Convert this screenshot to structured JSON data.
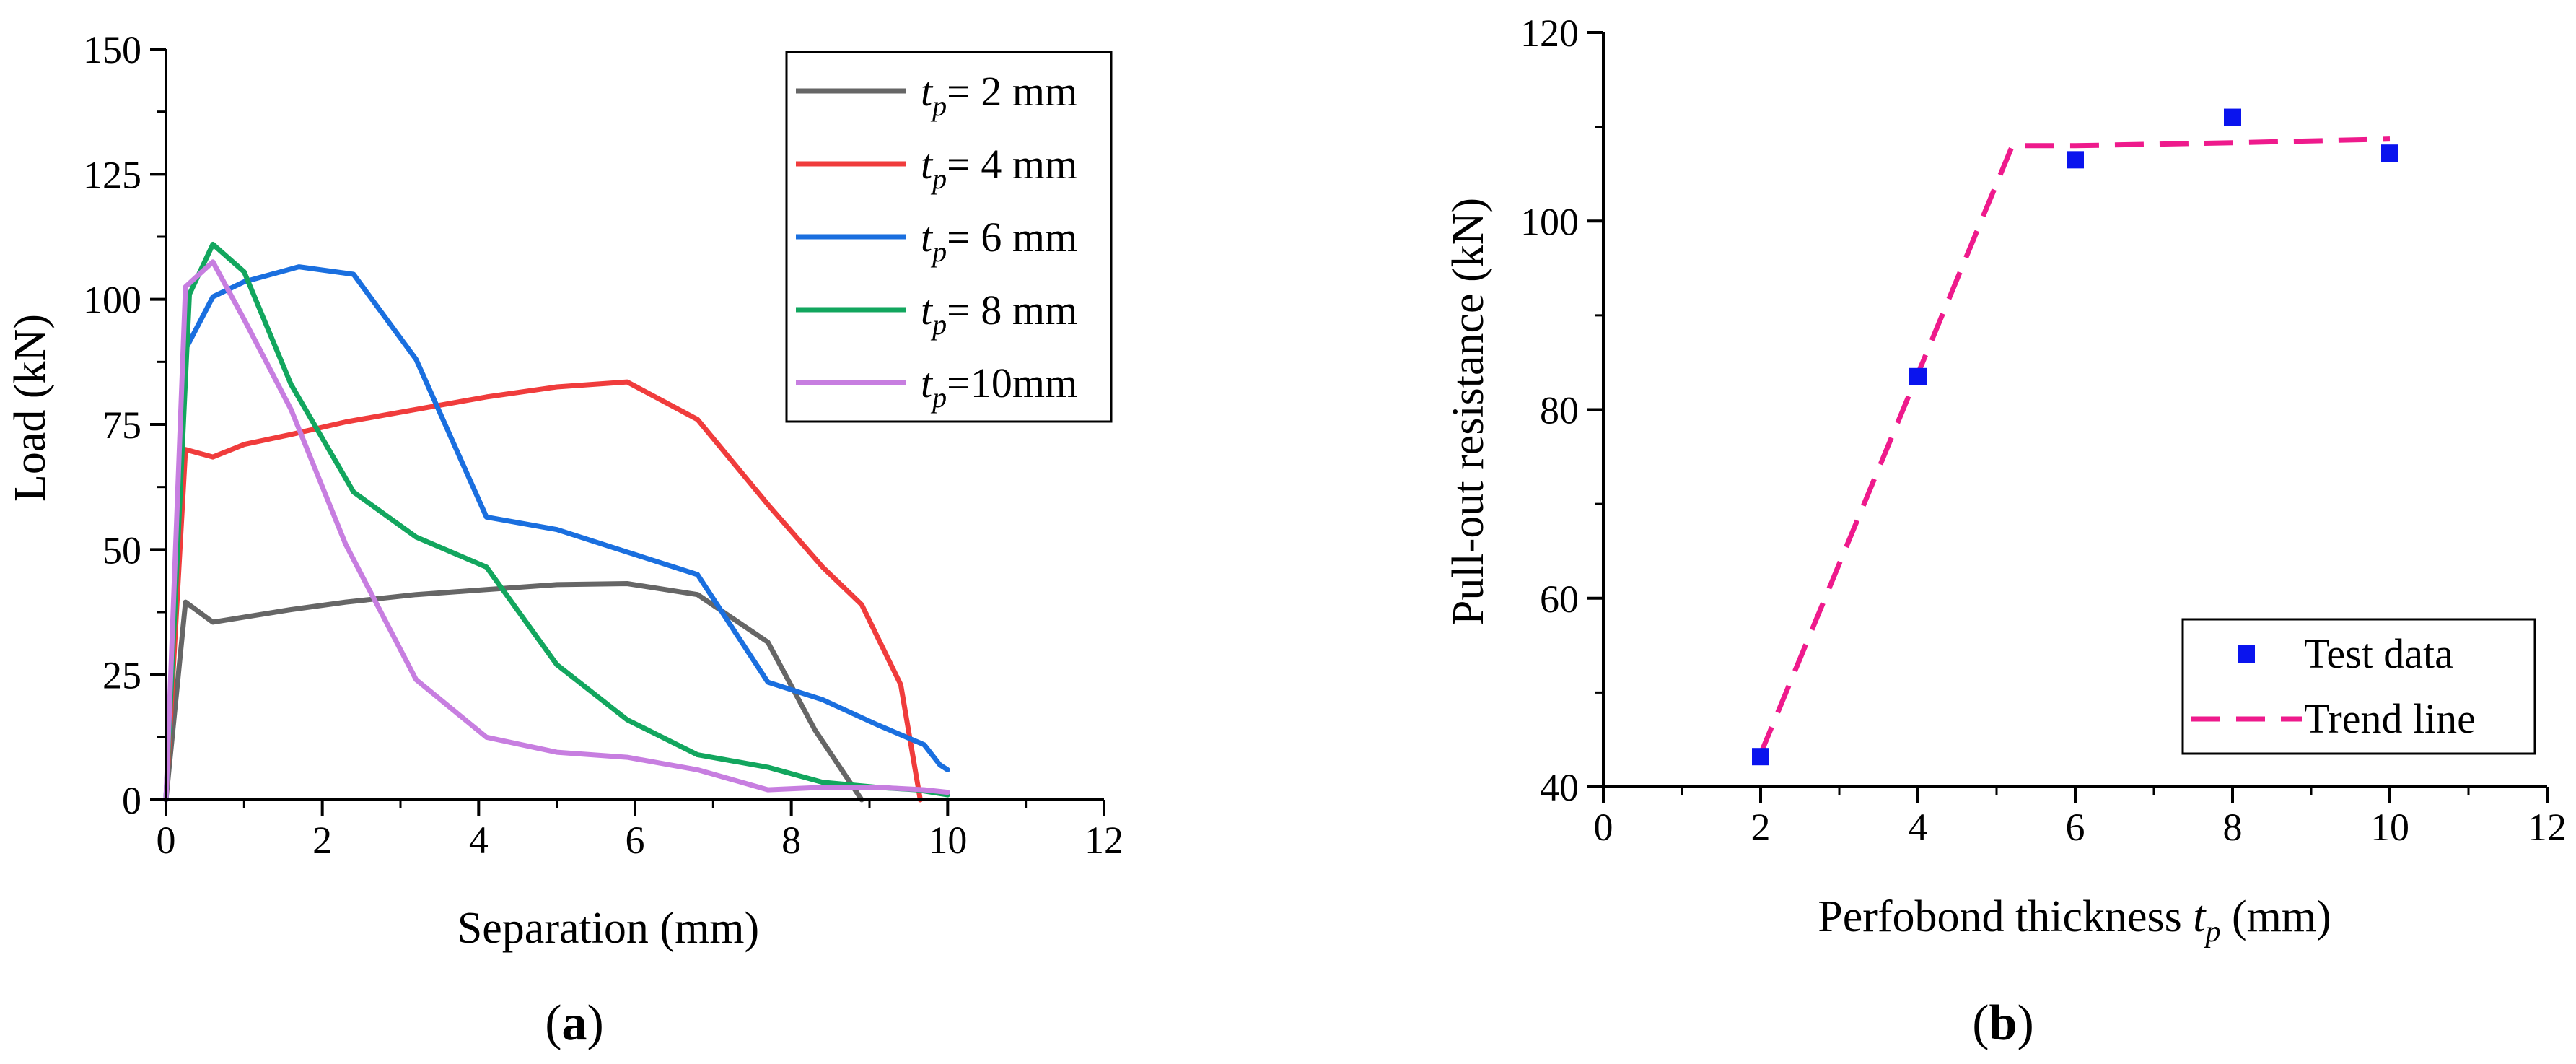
{
  "chart_data": [
    {
      "type": "line",
      "panel_label_open": "(",
      "panel_label": "a",
      "panel_label_close": ")",
      "xlabel": "Separation (mm)",
      "ylabel": "Load (kN)",
      "xlim": [
        0,
        12
      ],
      "ylim": [
        0,
        150
      ],
      "xticks": [
        "0",
        "2",
        "4",
        "6",
        "8",
        "10",
        "12"
      ],
      "yticks": [
        "0",
        "25",
        "50",
        "75",
        "100",
        "125",
        "150"
      ],
      "legend_position": "top-right",
      "series": [
        {
          "name": "tp= 2 mm",
          "legend_sym": "t",
          "legend_sub": "p",
          "legend_rest": "= 2 mm",
          "color": "#666666",
          "x": [
            0,
            0.25,
            0.6,
            1.0,
            1.6,
            2.3,
            3.2,
            4.1,
            5.0,
            5.9,
            6.8,
            7.7,
            8.3,
            8.9
          ],
          "y": [
            0,
            39.5,
            35.5,
            36.5,
            38,
            39.5,
            41,
            42,
            43,
            43.2,
            41,
            31.5,
            14,
            0
          ]
        },
        {
          "name": "tp= 4 mm",
          "legend_sym": "t",
          "legend_sub": "p",
          "legend_rest": "= 4 mm",
          "color": "#f03c3c",
          "x": [
            0,
            0.25,
            0.6,
            1.0,
            1.6,
            2.3,
            3.2,
            4.1,
            5.0,
            5.9,
            6.8,
            7.7,
            8.4,
            8.9,
            9.4,
            9.65
          ],
          "y": [
            0,
            70,
            68.5,
            71,
            73,
            75.5,
            78,
            80.5,
            82.5,
            83.5,
            76,
            59,
            46.5,
            39,
            23,
            0
          ]
        },
        {
          "name": "tp= 6 mm",
          "legend_sym": "t",
          "legend_sub": "p",
          "legend_rest": "= 6 mm",
          "color": "#1a6fdf",
          "x": [
            0,
            0.25,
            0.6,
            1.0,
            1.7,
            2.4,
            3.2,
            4.1,
            5.0,
            5.9,
            6.8,
            7.7,
            8.4,
            9.1,
            9.7,
            9.9,
            10.0
          ],
          "y": [
            0,
            90,
            100.5,
            103.5,
            106.5,
            105,
            88,
            56.5,
            54,
            49.5,
            45,
            23.5,
            20,
            15,
            11,
            7,
            6
          ]
        },
        {
          "name": "tp= 8 mm",
          "legend_sym": "t",
          "legend_sub": "p",
          "legend_rest": "= 8 mm",
          "color": "#12a65e",
          "x": [
            0,
            0.3,
            0.6,
            1.0,
            1.6,
            2.4,
            3.2,
            4.1,
            5.0,
            5.9,
            6.8,
            7.7,
            8.4,
            9.1,
            9.6,
            10.0
          ],
          "y": [
            0,
            101,
            111,
            105.5,
            83,
            61.5,
            52.5,
            46.5,
            27,
            16,
            9,
            6.5,
            3.5,
            2.5,
            2,
            1
          ]
        },
        {
          "name": "tp=10mm",
          "legend_sym": "t",
          "legend_sub": "p",
          "legend_rest": "=10mm",
          "color": "#c77ee0",
          "x": [
            0,
            0.25,
            0.6,
            1.0,
            1.6,
            2.3,
            3.2,
            4.1,
            5.0,
            5.9,
            6.8,
            7.7,
            8.4,
            9.1,
            9.7,
            10.0
          ],
          "y": [
            0,
            102.5,
            107.5,
            96,
            78,
            51,
            24,
            12.5,
            9.5,
            8.5,
            6,
            2,
            2.5,
            2.5,
            2,
            1.5
          ]
        }
      ]
    },
    {
      "type": "scatter",
      "panel_label_open": "(",
      "panel_label": "b",
      "panel_label_close": ")",
      "xlabel_pre": "Perfobond thickness ",
      "xlabel_sym": "t",
      "xlabel_sub": "p",
      "xlabel_post": " (mm)",
      "ylabel": "Pull-out resistance (kN)",
      "xlim": [
        0,
        12
      ],
      "ylim": [
        40,
        120
      ],
      "xticks": [
        "0",
        "2",
        "4",
        "6",
        "8",
        "10",
        "12"
      ],
      "yticks": [
        "40",
        "60",
        "80",
        "100",
        "120"
      ],
      "legend_position": "bottom-right",
      "series": [
        {
          "name": "Test data",
          "marker": "square",
          "color": "#0a14ee",
          "x": [
            2,
            4,
            6,
            8,
            10
          ],
          "y": [
            43.2,
            83.5,
            106.5,
            111,
            107.2
          ]
        },
        {
          "name": "Trend line",
          "style": "dashed",
          "color": "#ee1a8c",
          "x": [
            2,
            5.2,
            6,
            8,
            10
          ],
          "y": [
            43.5,
            108,
            108,
            108.3,
            108.7
          ]
        }
      ]
    }
  ]
}
